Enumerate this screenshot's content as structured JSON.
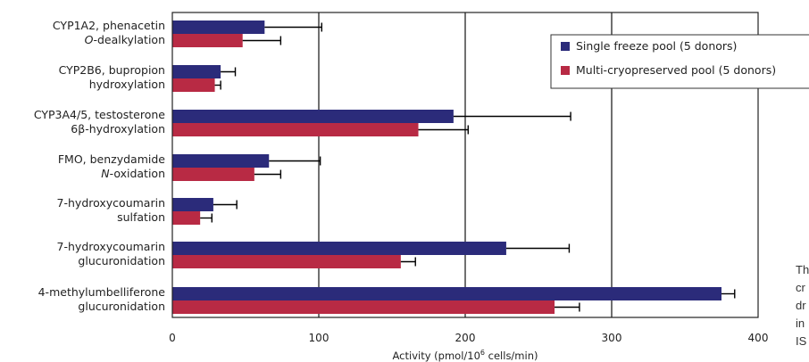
{
  "chart_data": {
    "type": "bar",
    "orientation": "horizontal",
    "categories": [
      [
        "CYP1A2, phenacetin",
        "O-dealkylation"
      ],
      [
        "CYP2B6, bupropion",
        "hydroxylation"
      ],
      [
        "CYP3A4/5, testosterone",
        "6β-hydroxylation"
      ],
      [
        "FMO, benzydamide",
        "N-oxidation"
      ],
      [
        "7-hydroxycoumarin",
        "sulfation"
      ],
      [
        "7-hydroxycoumarin",
        "glucuronidation"
      ],
      [
        "4-methylumbelliferone",
        "glucuronidation"
      ]
    ],
    "italic_prefix": [
      "O",
      "",
      "",
      "N",
      "",
      "",
      ""
    ],
    "series": [
      {
        "name": "Single freeze pool (5 donors)",
        "color": "#2b2b7a",
        "values": [
          63,
          33,
          192,
          66,
          28,
          228,
          375
        ],
        "errors": [
          39,
          10,
          80,
          35,
          16,
          43,
          9
        ]
      },
      {
        "name": "Multi-cryopreserved pool (5 donors)",
        "color": "#b82a44",
        "values": [
          48,
          29,
          168,
          56,
          19,
          156,
          261
        ],
        "errors": [
          26,
          4,
          34,
          18,
          8,
          10,
          17
        ]
      }
    ],
    "xlim": [
      0,
      400
    ],
    "xticks": [
      0,
      100,
      200,
      300,
      400
    ],
    "xlabel": "Activity (pmol/10",
    "xlabel_sup": "6",
    "xlabel_tail": " cells/min)",
    "ylabel": "",
    "title": "",
    "grid": "vertical",
    "legend_position": "top-right"
  },
  "side_text": [
    "Th",
    "cr",
    "dr",
    "in",
    "IS"
  ]
}
